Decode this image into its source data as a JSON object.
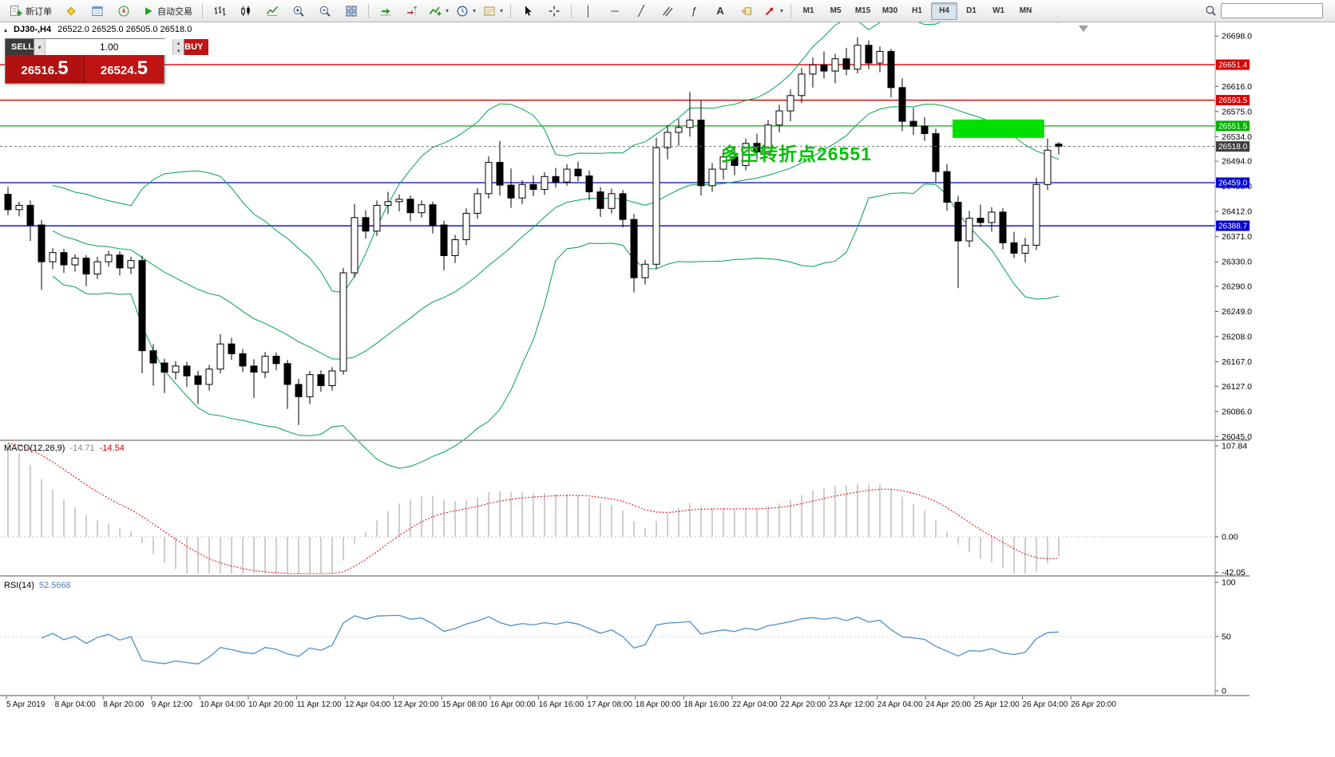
{
  "toolbar": {
    "new_order_label": "新订单",
    "autotrading_label": "自动交易",
    "timeframes": [
      "M1",
      "M5",
      "M15",
      "M30",
      "H1",
      "H4",
      "D1",
      "W1",
      "MN"
    ],
    "active_timeframe": "H4",
    "search_placeholder": "",
    "glyphs": {
      "vline": "│",
      "hline": "─",
      "trendline": "╱",
      "fibonacci": "ƒ",
      "text_tool": "A"
    }
  },
  "icons": {
    "collapse": "▴",
    "dropdown": "▾",
    "spin_up": "▴",
    "spin_down": "▾"
  },
  "chart": {
    "symbol": "DJ30-,H4",
    "ohlc_readout": "26522.0 26525.0 26505.0 26518.0",
    "annotation": {
      "text": "多空转折点26551",
      "color": "#00c000"
    },
    "trade_panel": {
      "sell_label": "SELL",
      "buy_label": "BUY",
      "volume": "1.00",
      "sell_price_int": "26516.",
      "sell_price_pip": "5",
      "buy_price_int": "26524.",
      "buy_price_pip": "5",
      "sell_color": "#b21111",
      "buy_color": "#c01414"
    }
  },
  "chart_data": {
    "type": "candlestick",
    "symbol": "DJ30-",
    "timeframe": "H4",
    "current_ohlc": {
      "open": 26522.0,
      "high": 26525.0,
      "low": 26505.0,
      "close": 26518.0
    },
    "ylim": [
      26040,
      26710
    ],
    "price_axis_ticks": [
      "26698.0",
      "26616.0",
      "26575.0",
      "26534.0",
      "26494.0",
      "26453.0",
      "26412.0",
      "26371.0",
      "26330.0",
      "26290.0",
      "26249.0",
      "26208.0",
      "26167.0",
      "26127.0",
      "26086.0",
      "26045.0"
    ],
    "time_axis_labels": [
      "5 Apr 2019",
      "8 Apr 04:00",
      "8 Apr 20:00",
      "9 Apr 12:00",
      "10 Apr 04:00",
      "10 Apr 20:00",
      "11 Apr 12:00",
      "12 Apr 04:00",
      "12 Apr 20:00",
      "15 Apr 08:00",
      "16 Apr 00:00",
      "16 Apr 16:00",
      "17 Apr 08:00",
      "18 Apr 00:00",
      "18 Apr 16:00",
      "22 Apr 04:00",
      "22 Apr 20:00",
      "23 Apr 12:00",
      "24 Apr 04:00",
      "24 Apr 20:00",
      "25 Apr 12:00",
      "26 Apr 04:00",
      "26 Apr 20:00"
    ],
    "candles": [
      [
        26440,
        26452,
        26406,
        26415
      ],
      [
        26415,
        26428,
        26404,
        26422
      ],
      [
        26422,
        26430,
        26364,
        26390
      ],
      [
        26390,
        26398,
        26284,
        26330
      ],
      [
        26330,
        26352,
        26318,
        26345
      ],
      [
        26345,
        26351,
        26312,
        26325
      ],
      [
        26325,
        26342,
        26314,
        26336
      ],
      [
        26336,
        26341,
        26290,
        26310
      ],
      [
        26310,
        26338,
        26302,
        26330
      ],
      [
        26330,
        26348,
        26322,
        26341
      ],
      [
        26341,
        26347,
        26308,
        26320
      ],
      [
        26320,
        26338,
        26310,
        26332
      ],
      [
        26332,
        26340,
        26148,
        26185
      ],
      [
        26185,
        26196,
        26128,
        26165
      ],
      [
        26165,
        26172,
        26116,
        26150
      ],
      [
        26150,
        26168,
        26138,
        26160
      ],
      [
        26160,
        26167,
        26126,
        26144
      ],
      [
        26144,
        26152,
        26098,
        26130
      ],
      [
        26130,
        26162,
        26120,
        26155
      ],
      [
        26155,
        26212,
        26148,
        26196
      ],
      [
        26196,
        26206,
        26170,
        26180
      ],
      [
        26180,
        26188,
        26150,
        26160
      ],
      [
        26160,
        26171,
        26108,
        26150
      ],
      [
        26150,
        26183,
        26140,
        26176
      ],
      [
        26176,
        26182,
        26153,
        26164
      ],
      [
        26164,
        26170,
        26090,
        26130
      ],
      [
        26130,
        26139,
        26064,
        26110
      ],
      [
        26110,
        26152,
        26098,
        26146
      ],
      [
        26146,
        26153,
        26118,
        26128
      ],
      [
        26128,
        26158,
        26120,
        26152
      ],
      [
        26152,
        26320,
        26146,
        26312
      ],
      [
        26312,
        26424,
        26304,
        26402
      ],
      [
        26402,
        26414,
        26368,
        26380
      ],
      [
        26380,
        26430,
        26372,
        26422
      ],
      [
        26422,
        26444,
        26408,
        26428
      ],
      [
        26428,
        26440,
        26412,
        26432
      ],
      [
        26432,
        26438,
        26396,
        26410
      ],
      [
        26410,
        26430,
        26402,
        26423
      ],
      [
        26423,
        26428,
        26376,
        26390
      ],
      [
        26390,
        26397,
        26316,
        26340
      ],
      [
        26340,
        26374,
        26328,
        26366
      ],
      [
        26366,
        26417,
        26357,
        26409
      ],
      [
        26409,
        26450,
        26400,
        26441
      ],
      [
        26441,
        26502,
        26433,
        26492
      ],
      [
        26492,
        26527,
        26438,
        26455
      ],
      [
        26455,
        26482,
        26418,
        26434
      ],
      [
        26434,
        26463,
        26424,
        26456
      ],
      [
        26456,
        26471,
        26437,
        26448
      ],
      [
        26448,
        26476,
        26439,
        26469
      ],
      [
        26469,
        26483,
        26451,
        26460
      ],
      [
        26460,
        26489,
        26454,
        26481
      ],
      [
        26481,
        26493,
        26461,
        26470
      ],
      [
        26470,
        26479,
        26430,
        26444
      ],
      [
        26444,
        26452,
        26403,
        26417
      ],
      [
        26417,
        26449,
        26409,
        26441
      ],
      [
        26441,
        26447,
        26386,
        26399
      ],
      [
        26399,
        26408,
        26280,
        26304
      ],
      [
        26304,
        26333,
        26293,
        26326
      ],
      [
        26326,
        26532,
        26318,
        26516
      ],
      [
        26516,
        26553,
        26497,
        26541
      ],
      [
        26541,
        26563,
        26519,
        26549
      ],
      [
        26549,
        26607,
        26534,
        26561
      ],
      [
        26561,
        26593,
        26438,
        26454
      ],
      [
        26454,
        26491,
        26444,
        26481
      ],
      [
        26481,
        26513,
        26464,
        26501
      ],
      [
        26501,
        26519,
        26471,
        26487
      ],
      [
        26487,
        26531,
        26479,
        26523
      ],
      [
        26523,
        26539,
        26497,
        26509
      ],
      [
        26509,
        26561,
        26504,
        26553
      ],
      [
        26553,
        26586,
        26541,
        26576
      ],
      [
        26576,
        26611,
        26559,
        26601
      ],
      [
        26601,
        26646,
        26589,
        26636
      ],
      [
        26636,
        26663,
        26614,
        26651
      ],
      [
        26651,
        26673,
        26629,
        26641
      ],
      [
        26641,
        26669,
        26621,
        26661
      ],
      [
        26661,
        26679,
        26634,
        26644
      ],
      [
        26644,
        26696,
        26637,
        26683
      ],
      [
        26683,
        26691,
        26644,
        26654
      ],
      [
        26654,
        26681,
        26639,
        26673
      ],
      [
        26673,
        26677,
        26598,
        26614
      ],
      [
        26614,
        26629,
        26543,
        26559
      ],
      [
        26559,
        26581,
        26537,
        26551
      ],
      [
        26551,
        26566,
        26527,
        26539
      ],
      [
        26539,
        26547,
        26460,
        26477
      ],
      [
        26477,
        26489,
        26413,
        26427
      ],
      [
        26427,
        26437,
        26287,
        26364
      ],
      [
        26364,
        26413,
        26354,
        26401
      ],
      [
        26401,
        26423,
        26387,
        26394
      ],
      [
        26394,
        26419,
        26379,
        26411
      ],
      [
        26411,
        26417,
        26350,
        26361
      ],
      [
        26361,
        26379,
        26336,
        26344
      ],
      [
        26344,
        26369,
        26329,
        26357
      ],
      [
        26357,
        26467,
        26349,
        26456
      ],
      [
        26456,
        26531,
        26447,
        26512
      ],
      [
        26522,
        26525,
        26505,
        26518
      ]
    ],
    "overlays": {
      "bollinger": {
        "period": 20,
        "deviation": 2,
        "color": "#00a050"
      },
      "horizontal_lines": [
        {
          "price": 26651.4,
          "color": "#d40000"
        },
        {
          "price": 26593.5,
          "color": "#d40000"
        },
        {
          "price": 26551.5,
          "color": "#00b000"
        },
        {
          "price": 26459.0,
          "color": "#0000d2"
        },
        {
          "price": 26388.7,
          "color": "#0000d2"
        }
      ],
      "bid_line": {
        "price": 26518.0,
        "color": "#707070",
        "badge_color": "#3f3f3f"
      },
      "rectangle": {
        "start_index": 84.5,
        "end_index": 92.7,
        "top_price": 26562,
        "bottom_price": 26532,
        "color": "#00e000"
      }
    },
    "indicators": [
      {
        "name": "MACD",
        "label": "MACD(12,26,9)",
        "values": [
          "-14.71",
          "-14.54"
        ],
        "axis_ticks": [
          "107.84",
          "0.00",
          "-42.05"
        ],
        "histogram_color": "#b8b8b8",
        "signal_color": "#e00000"
      },
      {
        "name": "RSI",
        "label": "RSI(14)",
        "value": "52.5668",
        "axis_ticks": [
          "100",
          "50",
          "0"
        ],
        "line_color": "#4d8fcc"
      }
    ]
  }
}
